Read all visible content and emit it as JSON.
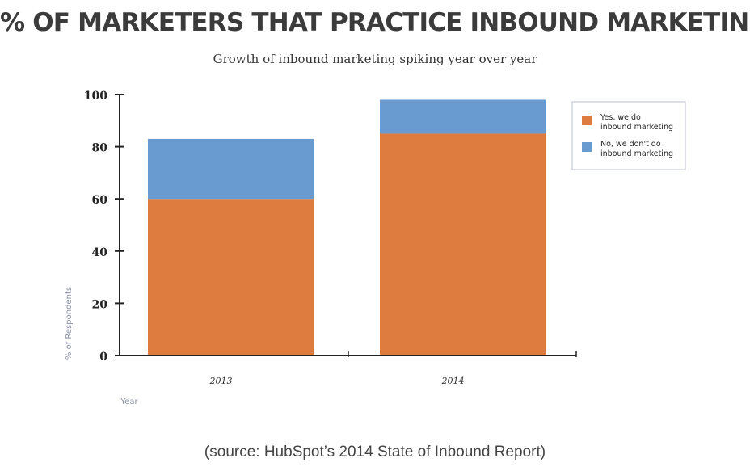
{
  "header": {
    "title": "% OF MARKETERS THAT PRACTICE INBOUND MARKETING",
    "subtitle": "Growth of inbound marketing spiking year over year"
  },
  "footer": {
    "source": "(source: HubSpot’s 2014 State of Inbound Report)"
  },
  "colors": {
    "yes": "#de7b3f",
    "no": "#6a9bd0",
    "axis": "#222222",
    "legend_border": "#b8bdd2"
  },
  "chart_data": {
    "type": "bar",
    "stacked": true,
    "title": "% OF MARKETERS THAT PRACTICE INBOUND MARKETING",
    "subtitle": "Growth of inbound marketing spiking year over year",
    "xlabel": "Year",
    "ylabel": "% of Respondents",
    "categories": [
      "2013",
      "2014"
    ],
    "series": [
      {
        "name": "Yes, we do inbound marketing",
        "values": [
          60,
          85
        ],
        "color": "#de7b3f"
      },
      {
        "name": "No, we don't do inbound marketing",
        "values": [
          23,
          13
        ],
        "color": "#6a9bd0"
      }
    ],
    "yticks": [
      "0",
      "20",
      "40",
      "60",
      "80",
      "100"
    ],
    "ylim": [
      0,
      100
    ],
    "grid": false,
    "legend_position": "top-right",
    "legend": [
      {
        "lines": [
          "Yes, we do",
          "inbound marketing"
        ]
      },
      {
        "lines": [
          "No, we don't do",
          "inbound marketing"
        ]
      }
    ]
  }
}
